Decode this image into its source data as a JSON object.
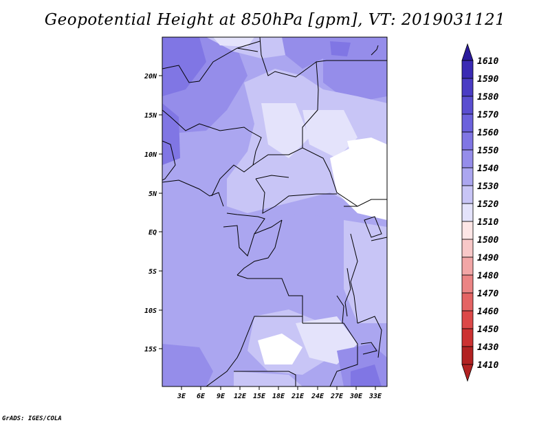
{
  "title": "Geopotential Height at 850hPa [gpm], VT: 2019031121",
  "credit": "GrADS: IGES/COLA",
  "map": {
    "lat_labels": [
      "20N",
      "15N",
      "10N",
      "5N",
      "EQ",
      "5S",
      "10S",
      "15S"
    ],
    "lon_labels": [
      "3E",
      "6E",
      "9E",
      "12E",
      "15E",
      "18E",
      "21E",
      "24E",
      "27E",
      "30E",
      "33E"
    ]
  },
  "colorbar": {
    "levels": [
      "1610",
      "1590",
      "1580",
      "1570",
      "1560",
      "1550",
      "1540",
      "1530",
      "1520",
      "1510",
      "1500",
      "1490",
      "1480",
      "1470",
      "1460",
      "1450",
      "1430",
      "1410"
    ],
    "colors": [
      "#2a1a9c",
      "#3a2ab4",
      "#4a3cc4",
      "#5a4ed0",
      "#6c62dc",
      "#8076e4",
      "#958dea",
      "#aba6f0",
      "#c8c5f6",
      "#e4e3fb",
      "#fde6e6",
      "#f8c8c8",
      "#f2a6a6",
      "#eb8484",
      "#e46464",
      "#dc4848",
      "#cc3232",
      "#b22222"
    ]
  }
}
